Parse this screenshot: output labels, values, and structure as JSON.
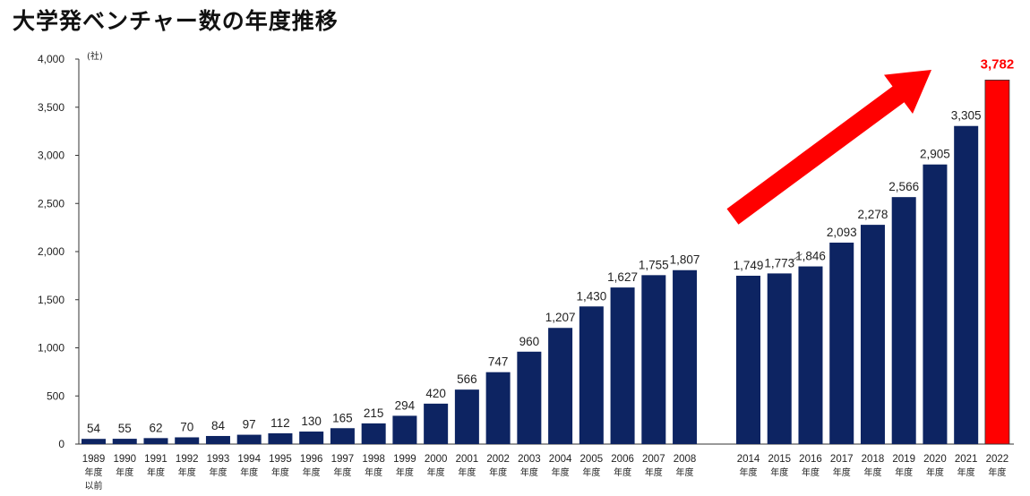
{
  "title": "大学発ベンチャー数の年度推移",
  "chart_data": {
    "type": "bar",
    "unit_label": "(社)",
    "y_ticks": [
      "0",
      "500",
      "1,000",
      "1,500",
      "2,000",
      "2,500",
      "3,000",
      "3,500",
      "4,000"
    ],
    "ylim": [
      0,
      4000
    ],
    "year_suffix": "年度",
    "first_suffix_extra": "以前",
    "categories": [
      "1989",
      "1990",
      "1991",
      "1992",
      "1993",
      "1994",
      "1995",
      "1996",
      "1997",
      "1998",
      "1999",
      "2000",
      "2001",
      "2002",
      "2003",
      "2004",
      "2005",
      "2006",
      "2007",
      "2008",
      "2014",
      "2015",
      "2016",
      "2017",
      "2018",
      "2019",
      "2020",
      "2021",
      "2022"
    ],
    "values": [
      54,
      55,
      62,
      70,
      84,
      97,
      112,
      130,
      165,
      215,
      294,
      420,
      566,
      747,
      960,
      1207,
      1430,
      1627,
      1755,
      1807,
      1749,
      1773,
      1846,
      2093,
      2278,
      2566,
      2905,
      3305,
      3782
    ],
    "value_labels": [
      "54",
      "55",
      "62",
      "70",
      "84",
      "97",
      "112",
      "130",
      "165",
      "215",
      "294",
      "420",
      "566",
      "747",
      "960",
      "1,207",
      "1,430",
      "1,627",
      "1,755",
      "1,807",
      "1,749",
      "1,773",
      "1,846",
      "2,093",
      "2,278",
      "2,566",
      "2,905",
      "3,305",
      "3,782"
    ],
    "highlight_index": 28,
    "colors": {
      "bar": "#0d2462",
      "highlight": "#ff0000",
      "arrow": "#ff0000"
    }
  }
}
